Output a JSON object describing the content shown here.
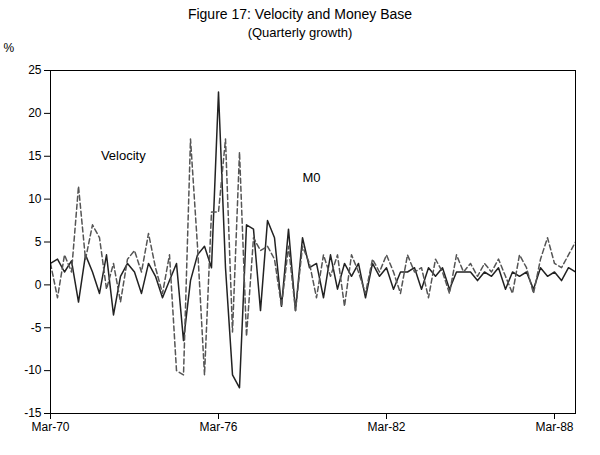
{
  "chart_data": {
    "type": "line",
    "title": "Figure 17: Velocity and Money Base",
    "subtitle": "(Quarterly growth)",
    "ylabel": "%",
    "x": [
      0,
      0.25,
      0.5,
      0.75,
      1,
      1.25,
      1.5,
      1.75,
      2,
      2.25,
      2.5,
      2.75,
      3,
      3.25,
      3.5,
      3.75,
      4,
      4.25,
      4.5,
      4.75,
      5,
      5.25,
      5.5,
      5.75,
      6,
      6.25,
      6.5,
      6.75,
      7,
      7.25,
      7.5,
      7.75,
      8,
      8.25,
      8.5,
      8.75,
      9,
      9.25,
      9.5,
      9.75,
      10,
      10.25,
      10.5,
      10.75,
      11,
      11.25,
      11.5,
      11.75,
      12,
      12.25,
      12.5,
      12.75,
      13,
      13.25,
      13.5,
      13.75,
      14,
      14.25,
      14.5,
      14.75,
      15,
      15.25,
      15.5,
      15.75,
      16,
      16.25,
      16.5,
      16.75,
      17,
      17.25,
      17.5,
      17.75,
      18,
      18.25,
      18.5,
      18.75
    ],
    "xlim": [
      0,
      18.75
    ],
    "xticks": [
      {
        "value": 0,
        "label": "Mar-70"
      },
      {
        "value": 6,
        "label": "Mar-76"
      },
      {
        "value": 12,
        "label": "Mar-82"
      },
      {
        "value": 18,
        "label": "Mar-88"
      }
    ],
    "ylim": [
      -15,
      25
    ],
    "yticks": [
      -15,
      -10,
      -5,
      0,
      5,
      10,
      15,
      20,
      25
    ],
    "grid": false,
    "series": [
      {
        "name": "Velocity",
        "color": "#222222",
        "line_style": "solid",
        "values": [
          2.5,
          3.0,
          1.5,
          2.8,
          -2.0,
          3.5,
          1.5,
          -1.0,
          3.5,
          -3.5,
          1.0,
          2.5,
          1.5,
          -1.0,
          2.5,
          1.0,
          -1.5,
          0.5,
          2.5,
          -6.5,
          0.5,
          3.5,
          4.5,
          2.0,
          22.5,
          2.0,
          -10.5,
          -12.0,
          7.0,
          6.5,
          -3.0,
          7.5,
          5.5,
          -2.5,
          6.5,
          -3.0,
          5.5,
          2.0,
          2.5,
          -1.5,
          3.5,
          -0.5,
          2.5,
          1.0,
          2.5,
          -1.5,
          2.5,
          1.0,
          2.0,
          -0.5,
          1.5,
          1.5,
          2.0,
          -0.5,
          2.0,
          1.0,
          2.0,
          -0.5,
          1.5,
          1.5,
          1.5,
          0.5,
          1.5,
          1.0,
          2.0,
          -0.5,
          1.5,
          1.0,
          1.5,
          -0.5,
          2.0,
          1.0,
          1.5,
          0.5,
          2.0,
          1.5
        ]
      },
      {
        "name": "M0",
        "color": "#555555",
        "line_style": "dashed",
        "values": [
          2.5,
          -1.5,
          3.5,
          1.5,
          11.5,
          3.0,
          7.0,
          5.5,
          -0.5,
          2.5,
          -2.0,
          3.0,
          4.0,
          1.5,
          6.0,
          2.0,
          -1.0,
          3.5,
          -10.0,
          -10.5,
          17.0,
          4.5,
          -10.5,
          8.5,
          8.5,
          17.0,
          -5.5,
          15.5,
          -6.0,
          5.5,
          4.0,
          4.5,
          3.0,
          -2.5,
          4.5,
          -3.0,
          4.5,
          2.5,
          -1.5,
          3.5,
          1.0,
          3.5,
          -2.5,
          3.5,
          1.5,
          -1.0,
          3.0,
          1.5,
          3.5,
          1.5,
          -1.0,
          3.5,
          1.5,
          2.0,
          -1.5,
          3.0,
          1.5,
          -1.0,
          3.5,
          1.5,
          2.5,
          1.0,
          2.5,
          1.5,
          3.0,
          1.0,
          -1.0,
          3.5,
          2.0,
          -1.0,
          3.0,
          5.5,
          2.5,
          2.0,
          3.5,
          5.0
        ]
      }
    ],
    "annotations": [
      {
        "text": "Velocity",
        "x": 1.8,
        "y": 15.0
      },
      {
        "text": "M0",
        "x": 9.0,
        "y": 12.5
      }
    ]
  }
}
